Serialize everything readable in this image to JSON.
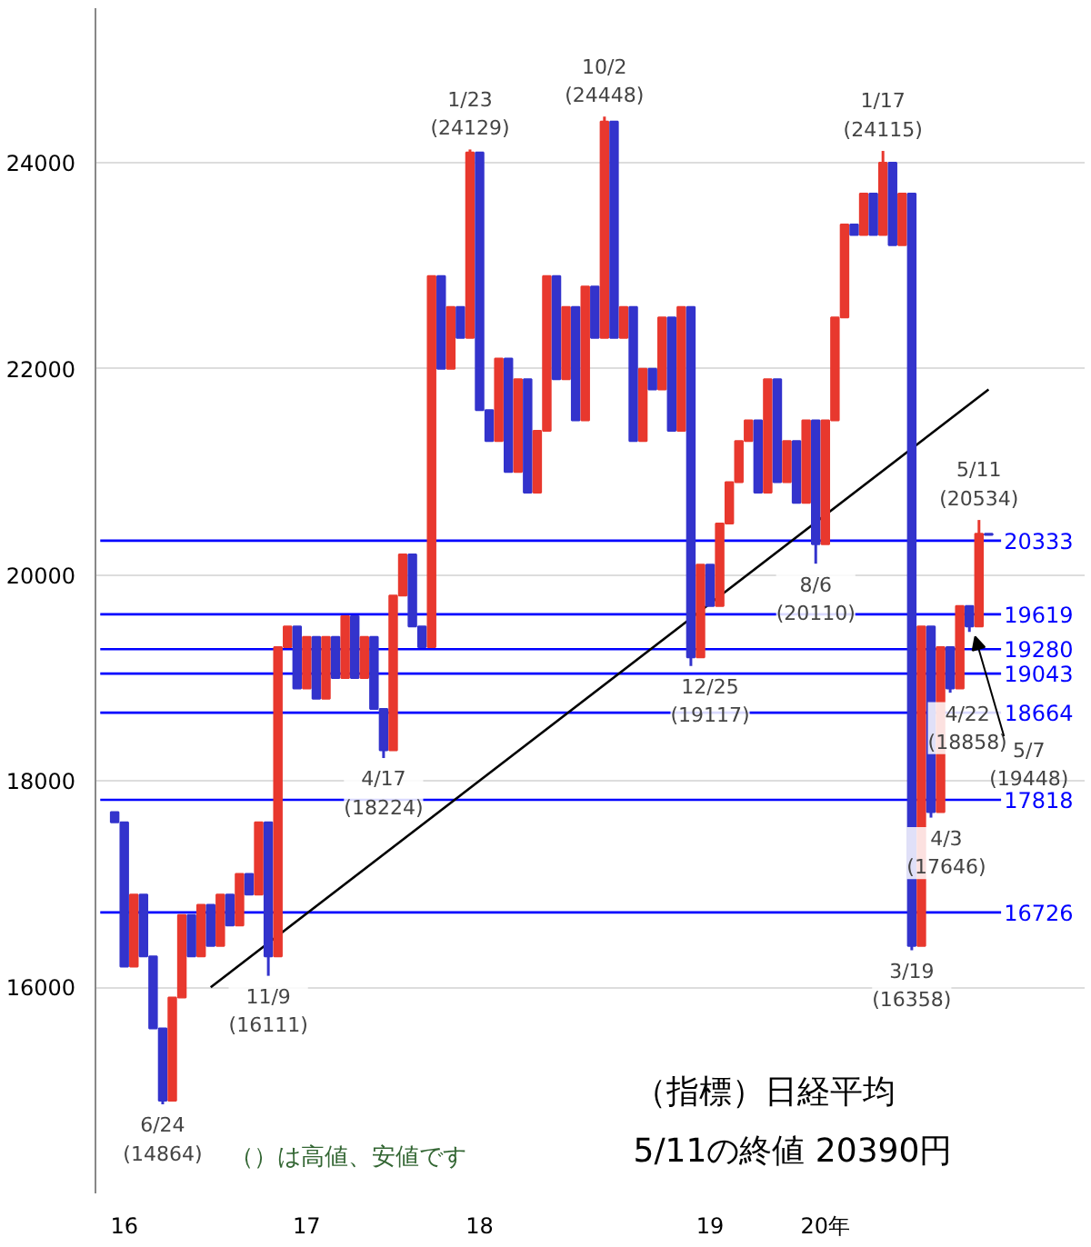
{
  "chart_data": {
    "type": "candlestick",
    "categories": [
      null,
      "16",
      null,
      null,
      null,
      null,
      null,
      null,
      null,
      null,
      null,
      null,
      null,
      null,
      null,
      null,
      null,
      null,
      null,
      null,
      "17",
      null,
      null,
      null,
      null,
      null,
      null,
      null,
      null,
      null,
      null,
      null,
      null,
      null,
      null,
      null,
      null,
      null,
      "18",
      null,
      null,
      null,
      null,
      null,
      null,
      null,
      null,
      null,
      null,
      null,
      null,
      null,
      null,
      null,
      null,
      null,
      null,
      null,
      null,
      null,
      null,
      null,
      "19",
      null,
      null,
      null,
      null,
      null,
      null,
      null,
      null,
      null,
      null,
      null,
      "20年",
      null,
      null,
      null,
      null,
      null,
      null,
      null,
      null,
      null,
      null,
      null,
      null,
      null,
      null,
      null,
      null,
      null
    ],
    "ohlc": [
      [
        17700,
        17700,
        17600,
        17600
      ],
      [
        17600,
        17600,
        16200,
        16200
      ],
      [
        16200,
        16900,
        16200,
        16900
      ],
      [
        16900,
        16900,
        16300,
        16300
      ],
      [
        16300,
        16300,
        15600,
        15600
      ],
      [
        15600,
        15600,
        14864,
        14900
      ],
      [
        14900,
        15900,
        14900,
        15900
      ],
      [
        15900,
        16700,
        15900,
        16700
      ],
      [
        16700,
        16700,
        16300,
        16300
      ],
      [
        16300,
        16800,
        16300,
        16800
      ],
      [
        16800,
        16800,
        16400,
        16400
      ],
      [
        16400,
        16900,
        16400,
        16900
      ],
      [
        16900,
        16900,
        16600,
        16600
      ],
      [
        16600,
        17100,
        16600,
        17100
      ],
      [
        17100,
        17100,
        16900,
        16900
      ],
      [
        16900,
        17600,
        16900,
        17600
      ],
      [
        17600,
        17600,
        16111,
        16300
      ],
      [
        16300,
        19300,
        16300,
        19300
      ],
      [
        19300,
        19500,
        19300,
        19500
      ],
      [
        19500,
        19500,
        18900,
        18900
      ],
      [
        18900,
        19400,
        18900,
        19400
      ],
      [
        19400,
        19400,
        18800,
        18800
      ],
      [
        18800,
        19400,
        18800,
        19400
      ],
      [
        19400,
        19400,
        19000,
        19000
      ],
      [
        19000,
        19600,
        19000,
        19600
      ],
      [
        19600,
        19600,
        19000,
        19000
      ],
      [
        19000,
        19400,
        19000,
        19400
      ],
      [
        19400,
        19400,
        18700,
        18700
      ],
      [
        18700,
        18700,
        18224,
        18300
      ],
      [
        18300,
        19800,
        18300,
        19800
      ],
      [
        19800,
        20200,
        19800,
        20200
      ],
      [
        20200,
        20200,
        19500,
        19500
      ],
      [
        19500,
        19500,
        19300,
        19300
      ],
      [
        19300,
        22900,
        19300,
        22900
      ],
      [
        22900,
        22900,
        22000,
        22000
      ],
      [
        22000,
        22600,
        22000,
        22600
      ],
      [
        22600,
        22600,
        22300,
        22300
      ],
      [
        22300,
        24129,
        22300,
        24100
      ],
      [
        24100,
        24100,
        21600,
        21600
      ],
      [
        21600,
        21600,
        21300,
        21300
      ],
      [
        21300,
        22100,
        21300,
        22100
      ],
      [
        22100,
        22100,
        21000,
        21000
      ],
      [
        21000,
        21900,
        21000,
        21900
      ],
      [
        21900,
        21900,
        20800,
        20800
      ],
      [
        20800,
        21400,
        20800,
        21400
      ],
      [
        21400,
        22900,
        21400,
        22900
      ],
      [
        22900,
        22900,
        21900,
        21900
      ],
      [
        21900,
        22600,
        21900,
        22600
      ],
      [
        22600,
        22600,
        21500,
        21500
      ],
      [
        21500,
        22800,
        21500,
        22800
      ],
      [
        22800,
        22800,
        22300,
        22300
      ],
      [
        22300,
        24448,
        22300,
        24400
      ],
      [
        24400,
        24400,
        22300,
        22300
      ],
      [
        22300,
        22600,
        22300,
        22600
      ],
      [
        22600,
        22600,
        21300,
        21300
      ],
      [
        21300,
        22000,
        21300,
        22000
      ],
      [
        22000,
        22000,
        21800,
        21800
      ],
      [
        21800,
        22500,
        21800,
        22500
      ],
      [
        22500,
        22500,
        21400,
        21400
      ],
      [
        21400,
        22600,
        21400,
        22600
      ],
      [
        22600,
        22600,
        19117,
        19200
      ],
      [
        19200,
        20100,
        19200,
        20100
      ],
      [
        20100,
        20100,
        19700,
        19700
      ],
      [
        19700,
        20500,
        19700,
        20500
      ],
      [
        20500,
        20900,
        20500,
        20900
      ],
      [
        20900,
        21300,
        20900,
        21300
      ],
      [
        21300,
        21500,
        21300,
        21500
      ],
      [
        21500,
        21500,
        20800,
        20800
      ],
      [
        20800,
        21900,
        20800,
        21900
      ],
      [
        21900,
        21900,
        20900,
        20900
      ],
      [
        20900,
        21300,
        20900,
        21300
      ],
      [
        21300,
        21300,
        20700,
        20700
      ],
      [
        20700,
        21500,
        20700,
        21500
      ],
      [
        21500,
        21500,
        20110,
        20300
      ],
      [
        20300,
        21500,
        20300,
        21500
      ],
      [
        21500,
        22500,
        21500,
        22500
      ],
      [
        22500,
        23400,
        22500,
        23400
      ],
      [
        23400,
        23400,
        23300,
        23300
      ],
      [
        23300,
        23700,
        23300,
        23700
      ],
      [
        23700,
        23700,
        23300,
        23300
      ],
      [
        23300,
        24115,
        23300,
        24000
      ],
      [
        24000,
        24000,
        23200,
        23200
      ],
      [
        23200,
        23700,
        23200,
        23700
      ],
      [
        23700,
        23700,
        16358,
        16400
      ],
      [
        16400,
        19500,
        16400,
        19500
      ],
      [
        19500,
        19500,
        17646,
        17700
      ],
      [
        17700,
        19300,
        17700,
        19300
      ],
      [
        19300,
        19300,
        18858,
        18900
      ],
      [
        18900,
        19700,
        18900,
        19700
      ],
      [
        19700,
        19700,
        19448,
        19500
      ],
      [
        19500,
        20534,
        19500,
        20400
      ],
      [
        20400,
        20400,
        20390,
        20390
      ]
    ],
    "colors": [
      "#3333cc",
      "#3333cc",
      "#e8382e",
      "#3333cc",
      "#3333cc",
      "#3333cc",
      "#e8382e",
      "#e8382e",
      "#3333cc",
      "#e8382e",
      "#3333cc",
      "#e8382e",
      "#3333cc",
      "#e8382e",
      "#3333cc",
      "#e8382e",
      "#3333cc",
      "#e8382e",
      "#e8382e",
      "#3333cc",
      "#e8382e",
      "#3333cc",
      "#e8382e",
      "#3333cc",
      "#e8382e",
      "#3333cc",
      "#e8382e",
      "#3333cc",
      "#3333cc",
      "#e8382e",
      "#e8382e",
      "#3333cc",
      "#3333cc",
      "#e8382e",
      "#3333cc",
      "#e8382e",
      "#3333cc",
      "#e8382e",
      "#3333cc",
      "#3333cc",
      "#e8382e",
      "#3333cc",
      "#e8382e",
      "#3333cc",
      "#e8382e",
      "#e8382e",
      "#3333cc",
      "#e8382e",
      "#3333cc",
      "#e8382e",
      "#3333cc",
      "#e8382e",
      "#3333cc",
      "#e8382e",
      "#3333cc",
      "#e8382e",
      "#3333cc",
      "#e8382e",
      "#3333cc",
      "#e8382e",
      "#3333cc",
      "#e8382e",
      "#3333cc",
      "#e8382e",
      "#e8382e",
      "#e8382e",
      "#e8382e",
      "#3333cc",
      "#e8382e",
      "#3333cc",
      "#e8382e",
      "#3333cc",
      "#e8382e",
      "#3333cc",
      "#e8382e",
      "#e8382e",
      "#e8382e",
      "#3333cc",
      "#e8382e",
      "#3333cc",
      "#e8382e",
      "#3333cc",
      "#e8382e",
      "#3333cc",
      "#e8382e",
      "#3333cc",
      "#e8382e",
      "#3333cc",
      "#e8382e",
      "#3333cc",
      "#e8382e",
      "#3333cc"
    ],
    "ylim": [
      14000,
      25500
    ],
    "yticks": [
      16000,
      18000,
      20000,
      22000,
      24000
    ],
    "grid": "y",
    "ref_lines": [
      {
        "axis": "y",
        "value": 20333,
        "label": "20333",
        "color": "#0000ff"
      },
      {
        "axis": "y",
        "value": 19619,
        "label": "19619",
        "color": "#0000ff"
      },
      {
        "axis": "y",
        "value": 19280,
        "label": "19280",
        "color": "#0000ff"
      },
      {
        "axis": "y",
        "value": 19043,
        "label": "19043",
        "color": "#0000ff"
      },
      {
        "axis": "y",
        "value": 18664,
        "label": "18664",
        "color": "#0000ff"
      },
      {
        "axis": "y",
        "value": 17818,
        "label": "17818",
        "color": "#0000ff"
      },
      {
        "axis": "y",
        "value": 16726,
        "label": "16726",
        "color": "#0000ff"
      }
    ],
    "annotations": [
      {
        "text": "6/24\n(14864)",
        "y": 14864
      },
      {
        "text": "11/9\n(16111)",
        "y": 16111
      },
      {
        "text": "4/17\n(18224)",
        "y": 18224
      },
      {
        "text": "1/23\n(24129)",
        "y": 24129
      },
      {
        "text": "10/2\n(24448)",
        "y": 24448
      },
      {
        "text": "12/25\n(19117)",
        "y": 19117
      },
      {
        "text": "8/6\n(20110)",
        "y": 20110
      },
      {
        "text": "1/17\n(24115)",
        "y": 24115
      },
      {
        "text": "3/19\n(16358)",
        "y": 16358
      },
      {
        "text": "4/3\n(17646)",
        "y": 17646
      },
      {
        "text": "4/22\n(18858)",
        "y": 18858
      },
      "5/7\n(19448)",
      {
        "text": "5/11\n(20534)",
        "y": 20534
      },
      "（）は高値、安値です",
      "（指標）日経平均",
      "5/11の終値 20390円"
    ],
    "series": [
      {
        "type": "line",
        "color": "#000000",
        "values": [
          null,
          null,
          null,
          null,
          null,
          null,
          null,
          null,
          null,
          null,
          16000,
          null,
          null,
          null,
          null,
          null,
          null,
          null,
          null,
          null,
          null,
          null,
          null,
          null,
          null,
          null,
          null,
          null,
          null,
          null,
          null,
          null,
          null,
          null,
          null,
          null,
          null,
          null,
          null,
          null,
          null,
          null,
          null,
          null,
          null,
          null,
          null,
          null,
          null,
          null,
          null,
          null,
          null,
          null,
          null,
          null,
          null,
          null,
          null,
          null,
          null,
          null,
          null,
          null,
          null,
          null,
          null,
          null,
          null,
          null,
          null,
          null,
          null,
          null,
          null,
          null,
          null,
          null,
          null,
          null,
          null,
          null,
          null,
          null,
          null,
          null,
          null,
          null,
          null,
          null,
          null,
          21800
        ]
      }
    ]
  }
}
